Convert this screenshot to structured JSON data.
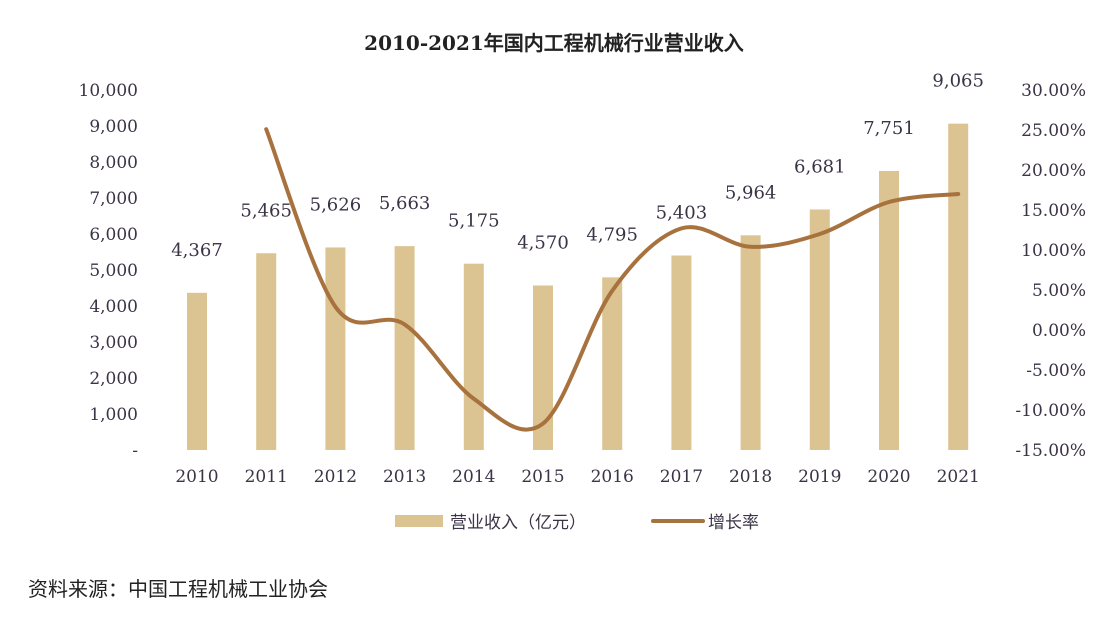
{
  "chart_data": {
    "type": "bar+line",
    "title": "2010-2021年国内工程机械行业营业收入",
    "categories": [
      "2010",
      "2011",
      "2012",
      "2013",
      "2014",
      "2015",
      "2016",
      "2017",
      "2018",
      "2019",
      "2020",
      "2021"
    ],
    "series": [
      {
        "name": "营业收入（亿元）",
        "type": "bar",
        "axis": "left",
        "color": "#dcc492",
        "values": [
          4367,
          5465,
          5626,
          5663,
          5175,
          4570,
          4795,
          5403,
          5964,
          6681,
          7751,
          9065
        ],
        "labels": [
          "4,367",
          "5,465",
          "5,626",
          "5,663",
          "5,175",
          "4,570",
          "4,795",
          "5,403",
          "5,964",
          "6,681",
          "7,751",
          "9,065"
        ]
      },
      {
        "name": "增长率",
        "type": "line",
        "axis": "right",
        "color": "#a8723e",
        "values": [
          null,
          25.1,
          2.9,
          0.7,
          -8.6,
          -11.7,
          4.9,
          12.7,
          10.4,
          12.0,
          16.0,
          17.0
        ]
      }
    ],
    "left_axis": {
      "ylim": [
        0,
        10000
      ],
      "ticks": [
        "-",
        "1,000",
        "2,000",
        "3,000",
        "4,000",
        "5,000",
        "6,000",
        "7,000",
        "8,000",
        "9,000",
        "10,000"
      ]
    },
    "right_axis": {
      "ylim": [
        -15,
        30
      ],
      "ticks": [
        "-15.00%",
        "-10.00%",
        "-5.00%",
        "0.00%",
        "5.00%",
        "10.00%",
        "15.00%",
        "20.00%",
        "25.00%",
        "30.00%"
      ]
    },
    "grid": false,
    "legend_position": "bottom",
    "source": "资料来源：中国工程机械工业协会"
  }
}
